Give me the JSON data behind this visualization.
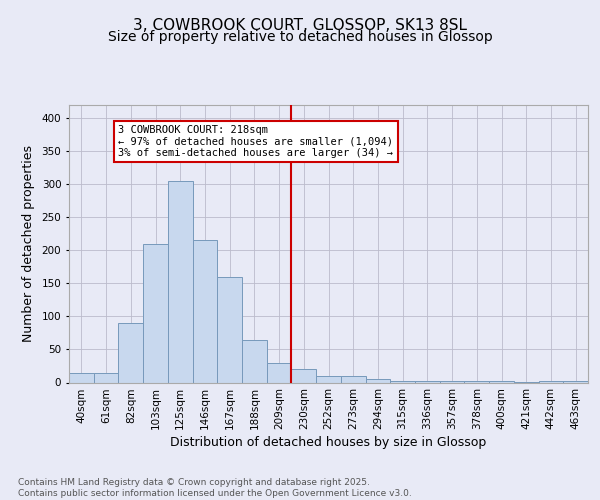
{
  "title_line1": "3, COWBROOK COURT, GLOSSOP, SK13 8SL",
  "title_line2": "Size of property relative to detached houses in Glossop",
  "xlabel": "Distribution of detached houses by size in Glossop",
  "ylabel": "Number of detached properties",
  "categories": [
    "40sqm",
    "61sqm",
    "82sqm",
    "103sqm",
    "125sqm",
    "146sqm",
    "167sqm",
    "188sqm",
    "209sqm",
    "230sqm",
    "252sqm",
    "273sqm",
    "294sqm",
    "315sqm",
    "336sqm",
    "357sqm",
    "378sqm",
    "400sqm",
    "421sqm",
    "442sqm",
    "463sqm"
  ],
  "values": [
    15,
    15,
    90,
    210,
    305,
    215,
    160,
    65,
    30,
    20,
    10,
    10,
    5,
    3,
    2,
    3,
    2,
    3,
    1,
    3,
    2
  ],
  "bar_color": "#c8d8ee",
  "bar_edge_color": "#7799bb",
  "grid_color": "#bbbbcc",
  "background_color": "#e8eaf6",
  "annotation_text": "3 COWBROOK COURT: 218sqm\n← 97% of detached houses are smaller (1,094)\n3% of semi-detached houses are larger (34) →",
  "annotation_box_color": "#ffffff",
  "annotation_box_edge_color": "#cc0000",
  "vline_color": "#cc0000",
  "ylim": [
    0,
    420
  ],
  "yticks": [
    0,
    50,
    100,
    150,
    200,
    250,
    300,
    350,
    400
  ],
  "footnote": "Contains HM Land Registry data © Crown copyright and database right 2025.\nContains public sector information licensed under the Open Government Licence v3.0.",
  "title_fontsize": 11,
  "subtitle_fontsize": 10,
  "axis_label_fontsize": 9,
  "tick_fontsize": 7.5,
  "annotation_fontsize": 7.5,
  "footnote_fontsize": 6.5
}
